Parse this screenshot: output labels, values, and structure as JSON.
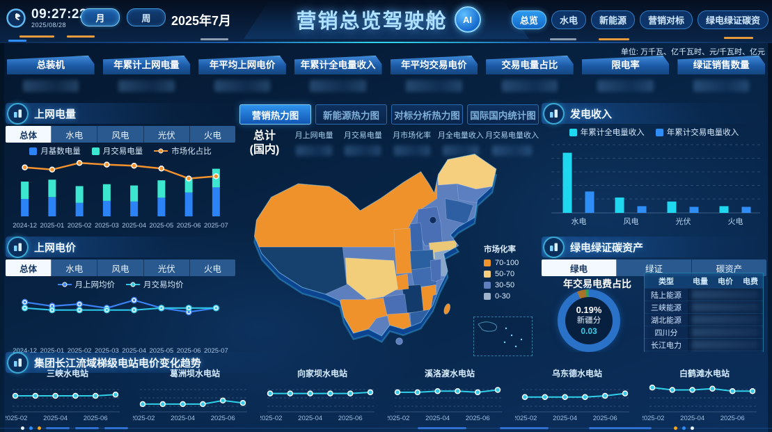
{
  "header": {
    "time": "09:27:22",
    "date": "2025/08/28",
    "period_buttons": [
      {
        "label": "月",
        "active": true
      },
      {
        "label": "周",
        "active": false
      }
    ],
    "current_month": "2025年7月",
    "title": "营销总览驾驶舱",
    "ai_badge": "AI",
    "nav": [
      {
        "label": "总览",
        "active": true
      },
      {
        "label": "水电",
        "active": false
      },
      {
        "label": "新能源",
        "active": false
      },
      {
        "label": "营销对标",
        "active": false
      },
      {
        "label": "绿电绿证碳资",
        "active": false
      }
    ]
  },
  "units_note": "单位: 万千瓦、亿千瓦时、元/千瓦时、亿元",
  "kpis": [
    "总装机",
    "年累计上网电量",
    "年平均上网电价",
    "年累计全电量收入",
    "年平均交易电价",
    "交易电量占比",
    "限电率",
    "绿证销售数量"
  ],
  "left_panels": {
    "power": {
      "title": "上网电量",
      "tabs": [
        {
          "label": "总体",
          "active": true
        },
        {
          "label": "水电",
          "active": false
        },
        {
          "label": "风电",
          "active": false
        },
        {
          "label": "光伏",
          "active": false
        },
        {
          "label": "火电",
          "active": false
        }
      ]
    },
    "price": {
      "title": "上网电价",
      "tabs": [
        {
          "label": "总体",
          "active": true
        },
        {
          "label": "水电",
          "active": false
        },
        {
          "label": "风电",
          "active": false
        },
        {
          "label": "光伏",
          "active": false
        },
        {
          "label": "火电",
          "active": false
        }
      ]
    }
  },
  "center": {
    "tabs": [
      {
        "label": "营销热力图",
        "active": true
      },
      {
        "label": "新能源热力图",
        "active": false
      },
      {
        "label": "对标分析热力图",
        "active": false
      },
      {
        "label": "国际国内统计图",
        "active": false
      }
    ],
    "summary_label_1": "总计",
    "summary_label_2": "(国内)",
    "summary_columns": [
      "月上网电量",
      "月交易电量",
      "月市场化率",
      "月全电量收入",
      "月交易电量收入"
    ],
    "map_legend": {
      "title": "市场化率",
      "items": [
        {
          "label": "70-100",
          "color": "#f0922c"
        },
        {
          "label": "50-70",
          "color": "#f6cf7e"
        },
        {
          "label": "30-50",
          "color": "#5d7fbe"
        },
        {
          "label": "0-30",
          "color": "#9fb3cc"
        }
      ]
    }
  },
  "right_panels": {
    "revenue": {
      "title": "发电收入"
    },
    "green": {
      "title": "绿电绿证碳资产",
      "tabs": [
        {
          "label": "绿电",
          "active": true
        },
        {
          "label": "绿证",
          "active": false
        },
        {
          "label": "碳资产",
          "active": false
        }
      ],
      "donut_title": "年交易电费占比",
      "table_headers": [
        "类型",
        "电量",
        "电价",
        "电费"
      ],
      "table_rows": [
        "陆上能源",
        "三峡能源",
        "湖北能源",
        "四川分",
        "长江电力",
        "新疆分"
      ]
    }
  },
  "bottom_panel": {
    "title": "集团长江流域梯级电站电价变化趋势"
  },
  "chart_data": [
    {
      "id": "grid_power",
      "type": "bar",
      "title": "上网电量",
      "stacked": true,
      "legend_position": "top",
      "categories": [
        "2024-12",
        "2025-01",
        "2025-02",
        "2025-03",
        "2025-04",
        "2025-05",
        "2025-06",
        "2025-07"
      ],
      "series": [
        {
          "name": "月基数电量",
          "type": "bar",
          "color": "#2c83f6",
          "values": [
            27,
            30,
            21,
            24,
            23,
            29,
            37,
            45
          ]
        },
        {
          "name": "月交易电量",
          "type": "bar",
          "color": "#3ce6cf",
          "values": [
            27,
            27,
            26,
            26,
            25,
            27,
            23,
            29
          ]
        },
        {
          "name": "市场化占比",
          "type": "line",
          "color": "#f5922e",
          "unit": "%",
          "values": [
            88,
            84,
            96,
            93,
            91,
            86,
            68,
            72
          ]
        }
      ],
      "ylim": [
        0,
        80
      ],
      "y2lim": [
        0,
        100
      ]
    },
    {
      "id": "grid_price",
      "type": "line",
      "title": "上网电价",
      "categories": [
        "2024-12",
        "2025-01",
        "2025-02",
        "2025-03",
        "2025-04",
        "2025-05",
        "2025-06",
        "2025-07"
      ],
      "series": [
        {
          "name": "月上网均价",
          "color": "#3b82f6",
          "values": [
            0.3,
            0.28,
            0.29,
            0.27,
            0.31,
            0.27,
            0.25,
            0.27
          ]
        },
        {
          "name": "月交易均价",
          "color": "#2fc7e8",
          "values": [
            0.27,
            0.26,
            0.26,
            0.26,
            0.26,
            0.27,
            0.27,
            0.27
          ]
        }
      ],
      "ylim": [
        0.22,
        0.34
      ]
    },
    {
      "id": "revenue",
      "type": "bar",
      "title": "发电收入",
      "grouped": true,
      "grid": "dashed",
      "categories": [
        "水电",
        "风电",
        "光伏",
        "火电"
      ],
      "series": [
        {
          "name": "年累计全电量收入",
          "color": "#1fd8f0",
          "values": [
            90,
            23,
            17,
            10
          ]
        },
        {
          "name": "年累计交易电量收入",
          "color": "#2e8ef6",
          "values": [
            32,
            10,
            9,
            9
          ]
        }
      ],
      "ylim": [
        0,
        100
      ]
    },
    {
      "id": "green_donut",
      "type": "pie",
      "title": "年交易电费占比",
      "start_angle": 338,
      "center_text": {
        "percent": "0.19%",
        "label": "新疆分",
        "value": "0.03"
      },
      "slices": [
        {
          "value": 4.5,
          "color": "#a8732c"
        },
        {
          "value": 1.5,
          "color": "#2e9e5b"
        },
        {
          "value": 94,
          "color": "#2a72c8"
        }
      ]
    },
    {
      "id": "station_trends",
      "type": "line",
      "title": "集团长江流域梯级电站电价变化趋势",
      "x_ticks": [
        "2025-02",
        "2025-04",
        "2025-06"
      ],
      "ylim": [
        0.24,
        0.34
      ],
      "charts": [
        {
          "title": "三峡水电站",
          "values": [
            0.29,
            0.29,
            0.29,
            0.29,
            0.29,
            0.295
          ]
        },
        {
          "title": "葛洲坝水电站",
          "values": [
            0.255,
            0.255,
            0.255,
            0.255,
            0.27,
            0.26
          ]
        },
        {
          "title": "向家坝水电站",
          "values": [
            0.3,
            0.3,
            0.3,
            0.3,
            0.3,
            0.305
          ]
        },
        {
          "title": "溪洛渡水电站",
          "values": [
            0.305,
            0.305,
            0.31,
            0.31,
            0.305,
            0.315
          ]
        },
        {
          "title": "乌东德水电站",
          "values": [
            0.285,
            0.285,
            0.285,
            0.285,
            0.29,
            0.3
          ]
        },
        {
          "title": "白鹤滩水电站",
          "values": [
            0.325,
            0.315,
            0.315,
            0.32,
            0.31,
            0.31
          ]
        }
      ]
    }
  ]
}
